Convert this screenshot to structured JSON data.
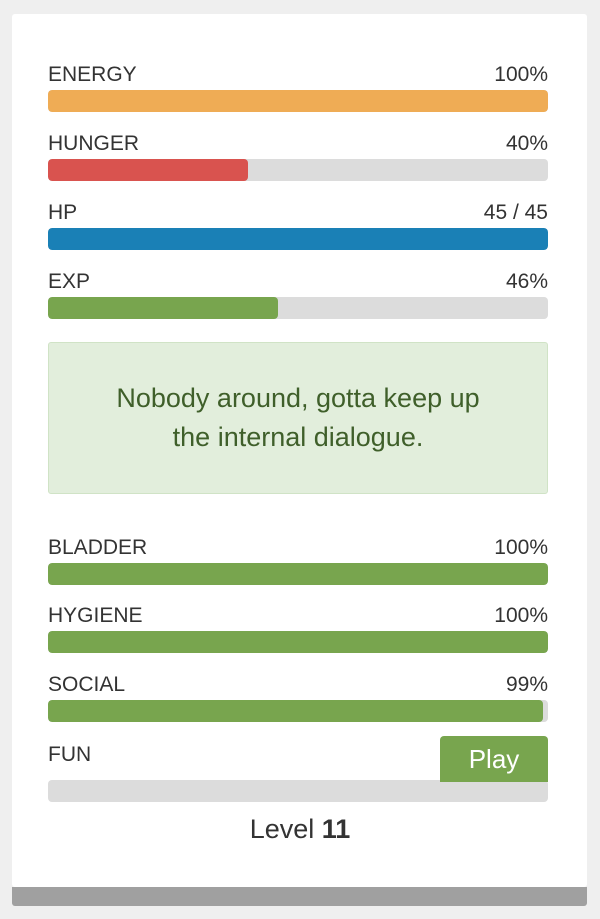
{
  "colors": {
    "energy": "#efac55",
    "hunger": "#d9534f",
    "hp": "#1a80b6",
    "green": "#78a54e",
    "track": "#dcdcdc"
  },
  "stats_top": [
    {
      "label": "ENERGY",
      "value": "100%",
      "fraction": 1.0,
      "color": "#efac55"
    },
    {
      "label": "HUNGER",
      "value": "40%",
      "fraction": 0.4,
      "color": "#d9534f"
    },
    {
      "label": "HP",
      "value": "45 / 45",
      "fraction": 1.0,
      "color": "#1a80b6"
    },
    {
      "label": "EXP",
      "value": "46%",
      "fraction": 0.46,
      "color": "#78a54e"
    }
  ],
  "message": "Nobody around, gotta keep up the internal dialogue.",
  "stats_bottom": [
    {
      "label": "BLADDER",
      "value": "100%",
      "fraction": 1.0,
      "color": "#78a54e"
    },
    {
      "label": "HYGIENE",
      "value": "100%",
      "fraction": 1.0,
      "color": "#78a54e"
    },
    {
      "label": "SOCIAL",
      "value": "99%",
      "fraction": 0.99,
      "color": "#78a54e"
    }
  ],
  "fun": {
    "label": "FUN",
    "fraction": 0,
    "play_label": "Play"
  },
  "level": {
    "prefix": "Level",
    "number": "11"
  }
}
